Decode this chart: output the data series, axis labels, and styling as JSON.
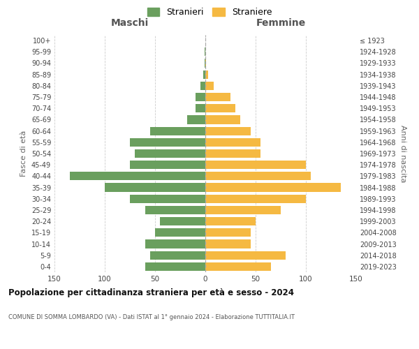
{
  "age_groups": [
    "0-4",
    "5-9",
    "10-14",
    "15-19",
    "20-24",
    "25-29",
    "30-34",
    "35-39",
    "40-44",
    "45-49",
    "50-54",
    "55-59",
    "60-64",
    "65-69",
    "70-74",
    "75-79",
    "80-84",
    "85-89",
    "90-94",
    "95-99",
    "100+"
  ],
  "birth_years": [
    "2019-2023",
    "2014-2018",
    "2009-2013",
    "2004-2008",
    "1999-2003",
    "1994-1998",
    "1989-1993",
    "1984-1988",
    "1979-1983",
    "1974-1978",
    "1969-1973",
    "1964-1968",
    "1959-1963",
    "1954-1958",
    "1949-1953",
    "1944-1948",
    "1939-1943",
    "1934-1938",
    "1929-1933",
    "1924-1928",
    "≤ 1923"
  ],
  "maschi": [
    60,
    55,
    60,
    50,
    45,
    60,
    75,
    100,
    135,
    75,
    70,
    75,
    55,
    18,
    10,
    10,
    5,
    2,
    1,
    1,
    0
  ],
  "femmine": [
    65,
    80,
    45,
    45,
    50,
    75,
    100,
    135,
    105,
    100,
    55,
    55,
    45,
    35,
    30,
    25,
    8,
    3,
    1,
    0,
    0
  ],
  "color_maschi": "#6a9f5e",
  "color_femmine": "#f5b942",
  "title_bold": "Popolazione per cittadinanza straniera per età e sesso - 2024",
  "subtitle": "COMUNE DI SOMMA LOMBARDO (VA) - Dati ISTAT al 1° gennaio 2024 - Elaborazione TUTTITALIA.IT",
  "xlabel_left": "Maschi",
  "xlabel_right": "Femmine",
  "ylabel_left": "Fasce di età",
  "ylabel_right": "Anni di nascita",
  "xlim": 150,
  "legend_stranieri": "Stranieri",
  "legend_straniere": "Straniere",
  "background_color": "#ffffff",
  "grid_color": "#cccccc"
}
